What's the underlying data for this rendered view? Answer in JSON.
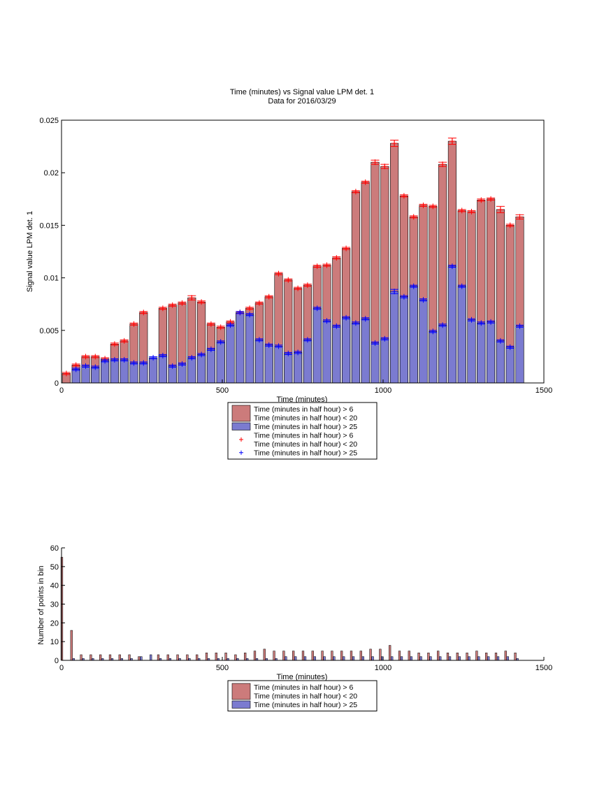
{
  "colors": {
    "red_bar": "#cc7b7b",
    "blue_bar": "#7b7bd0",
    "red_marker": "#ff0000",
    "blue_marker": "#0000ff",
    "axis": "#000000"
  },
  "chart_data": [
    {
      "type": "bar",
      "title": "Time (minutes) vs Signal value LPM det. 1",
      "subtitle": "Data for 2016/03/29",
      "xlabel": "Time (minutes)",
      "ylabel": "Signal value LPM det. 1",
      "xlim": [
        0,
        1500
      ],
      "ylim": [
        0,
        0.025
      ],
      "xticks": [
        "0",
        "500",
        "1000",
        "1500"
      ],
      "yticks": [
        "0",
        "0.005",
        "0.01",
        "0.015",
        "0.02",
        "0.025"
      ],
      "bar_width": 25,
      "x": [
        15,
        45,
        75,
        105,
        135,
        165,
        195,
        225,
        255,
        285,
        315,
        345,
        375,
        405,
        435,
        465,
        495,
        525,
        555,
        585,
        615,
        645,
        675,
        705,
        735,
        765,
        795,
        825,
        855,
        885,
        915,
        945,
        975,
        1005,
        1035,
        1065,
        1095,
        1125,
        1155,
        1185,
        1215,
        1245,
        1275,
        1305,
        1335,
        1365,
        1395,
        1425
      ],
      "series": [
        {
          "name": "Time (minutes in half hour) > 6\nTime (minutes in half hour) < 20",
          "color": "#cc7b7b",
          "values": [
            0.0009,
            0.0017,
            0.0025,
            0.0025,
            0.0023,
            0.0037,
            0.004,
            0.0056,
            0.0067,
            0.0,
            0.0071,
            0.0074,
            0.0076,
            0.0081,
            0.0077,
            0.0056,
            0.0053,
            0.0058,
            0.0067,
            0.0071,
            0.0076,
            0.0082,
            0.0104,
            0.0098,
            0.009,
            0.0093,
            0.0111,
            0.0112,
            0.0119,
            0.0128,
            0.0182,
            0.0191,
            0.021,
            0.0206,
            0.0228,
            0.0178,
            0.0158,
            0.0169,
            0.0168,
            0.0208,
            0.023,
            0.0164,
            0.0163,
            0.0174,
            0.0175,
            0.0165,
            0.015,
            0.0158
          ],
          "errors": [
            0.0001,
            0.0001,
            0.0001,
            0.0001,
            0.0001,
            0.0001,
            0.0001,
            0.0001,
            0.0001,
            0.0,
            0.0001,
            0.0001,
            0.0001,
            0.0002,
            0.0001,
            0.0001,
            0.0001,
            0.0001,
            0.0001,
            0.0001,
            0.0001,
            0.0001,
            0.0001,
            0.0001,
            0.0001,
            0.0001,
            0.0001,
            0.0001,
            0.0001,
            0.0001,
            0.0001,
            0.0001,
            0.0002,
            0.0002,
            0.0003,
            0.0001,
            0.0001,
            0.0001,
            0.0001,
            0.0002,
            0.0003,
            0.0001,
            0.0001,
            0.0001,
            0.0001,
            0.0003,
            0.0001,
            0.0002
          ]
        },
        {
          "name": "Time (minutes in half hour) > 25",
          "color": "#7b7bd0",
          "values": [
            0.0,
            0.0013,
            0.0016,
            0.0015,
            0.0021,
            0.0022,
            0.0022,
            0.0019,
            0.0019,
            0.0024,
            0.0026,
            0.0016,
            0.0018,
            0.0024,
            0.0027,
            0.0032,
            0.0039,
            0.0055,
            0.0067,
            0.0065,
            0.0041,
            0.0036,
            0.0035,
            0.0028,
            0.0029,
            0.0041,
            0.0071,
            0.0059,
            0.0054,
            0.0062,
            0.0057,
            0.0061,
            0.0038,
            0.0042,
            0.0087,
            0.0082,
            0.0092,
            0.0079,
            0.0049,
            0.0055,
            0.0111,
            0.0092,
            0.006,
            0.0057,
            0.0058,
            0.004,
            0.0034,
            0.0054
          ],
          "errors": [
            0.0,
            0.0001,
            0.0001,
            0.0001,
            0.0001,
            0.0001,
            0.0001,
            0.0001,
            0.0001,
            0.0001,
            0.0001,
            0.0001,
            0.0001,
            0.0001,
            0.0001,
            0.0001,
            0.0001,
            0.0001,
            0.0001,
            0.0001,
            0.0001,
            0.0001,
            0.0001,
            0.0001,
            0.0001,
            0.0001,
            0.0001,
            0.0001,
            0.0001,
            0.0001,
            0.0001,
            0.0001,
            0.0001,
            0.0001,
            0.0002,
            0.0001,
            0.0001,
            0.0001,
            0.0001,
            0.0001,
            0.0001,
            0.0001,
            0.0001,
            0.0001,
            0.0001,
            0.0001,
            0.0001,
            0.0001
          ]
        }
      ],
      "legend": {
        "placement": "bottom-center",
        "entries": [
          {
            "kind": "bar",
            "color": "#cc7b7b",
            "lines": [
              "Time (minutes in half hour) > 6",
              "Time (minutes in half hour) < 20"
            ]
          },
          {
            "kind": "bar",
            "color": "#7b7bd0",
            "lines": [
              "Time (minutes in half hour) > 25"
            ]
          },
          {
            "kind": "marker",
            "color": "#ff0000",
            "lines": [
              "Time (minutes in half hour) > 6",
              "Time (minutes in half hour) < 20"
            ]
          },
          {
            "kind": "marker",
            "color": "#0000ff",
            "lines": [
              "Time (minutes in half hour) > 25"
            ]
          }
        ]
      },
      "grid": false
    },
    {
      "type": "bar",
      "title": "",
      "xlabel": "Time (minutes)",
      "ylabel": "Number of points in bin",
      "xlim": [
        0,
        1500
      ],
      "ylim": [
        0,
        60
      ],
      "xticks": [
        "0",
        "500",
        "1000",
        "1500"
      ],
      "yticks": [
        "0",
        "10",
        "20",
        "30",
        "40",
        "50",
        "60"
      ],
      "bar_width": 12,
      "x": [
        0,
        30,
        60,
        90,
        120,
        150,
        180,
        210,
        240,
        270,
        300,
        330,
        360,
        390,
        420,
        450,
        480,
        510,
        540,
        570,
        600,
        630,
        660,
        690,
        720,
        750,
        780,
        810,
        840,
        870,
        900,
        930,
        960,
        990,
        1020,
        1050,
        1080,
        1110,
        1140,
        1170,
        1200,
        1230,
        1260,
        1290,
        1320,
        1350,
        1380,
        1410
      ],
      "series": [
        {
          "name": "Time (minutes in half hour) > 6\nTime (minutes in half hour) < 20",
          "color": "#cc7b7b",
          "values": [
            55,
            16,
            3,
            3,
            3,
            3,
            3,
            3,
            2,
            0,
            3,
            3,
            3,
            3,
            3,
            4,
            4,
            4,
            3,
            4,
            5,
            6,
            5,
            5,
            5,
            5,
            5,
            5,
            5,
            5,
            5,
            5,
            6,
            6,
            8,
            5,
            5,
            4,
            4,
            5,
            4,
            4,
            4,
            5,
            4,
            4,
            5,
            4
          ],
          "offset": -1
        },
        {
          "name": "Time (minutes in half hour) > 25",
          "color": "#7b7bd0",
          "values": [
            0,
            1,
            1,
            1,
            1,
            1,
            1,
            1,
            2,
            3,
            1,
            1,
            1,
            1,
            1,
            1,
            1,
            1,
            1,
            1,
            1,
            1,
            1,
            2,
            2,
            2,
            2,
            2,
            2,
            2,
            2,
            2,
            2,
            2,
            2,
            2,
            2,
            2,
            2,
            2,
            2,
            2,
            2,
            2,
            2,
            2,
            2,
            1
          ],
          "offset": 1
        }
      ],
      "legend": {
        "placement": "bottom-center",
        "entries": [
          {
            "kind": "bar",
            "color": "#cc7b7b",
            "lines": [
              "Time (minutes in half hour) > 6",
              "Time (minutes in half hour) < 20"
            ]
          },
          {
            "kind": "bar",
            "color": "#7b7bd0",
            "lines": [
              "Time (minutes in half hour) > 25"
            ]
          }
        ]
      },
      "grid": false
    }
  ]
}
